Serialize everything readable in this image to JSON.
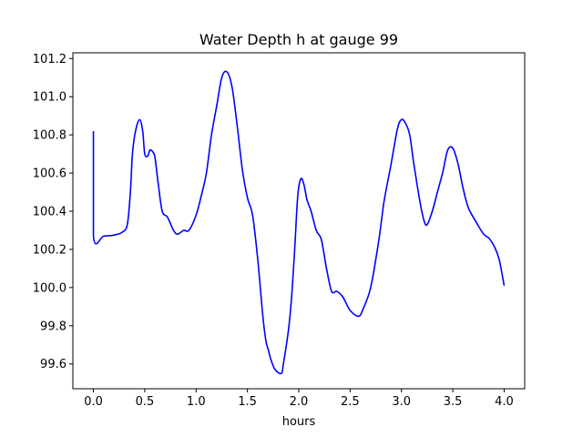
{
  "chart_data": {
    "type": "line",
    "title": "Water Depth h at gauge 99",
    "xlabel": "hours",
    "ylabel": "",
    "xlim": [
      -0.2,
      4.2
    ],
    "ylim": [
      99.47,
      101.23
    ],
    "xticks": [
      0.0,
      0.5,
      1.0,
      1.5,
      2.0,
      2.5,
      3.0,
      3.5,
      4.0
    ],
    "xtick_labels": [
      "0.0",
      "0.5",
      "1.0",
      "1.5",
      "2.0",
      "2.5",
      "3.0",
      "3.5",
      "4.0"
    ],
    "yticks": [
      99.6,
      99.8,
      100.0,
      100.2,
      100.4,
      100.6,
      100.8,
      101.0,
      101.2
    ],
    "ytick_labels": [
      "99.6",
      "99.8",
      "100.0",
      "100.2",
      "100.4",
      "100.6",
      "100.8",
      "101.0",
      "101.2"
    ],
    "grid": false,
    "series": [
      {
        "color": "#0000ff",
        "x": [
          0.0,
          0.0,
          0.1,
          0.2,
          0.28,
          0.33,
          0.36,
          0.38,
          0.41,
          0.45,
          0.48,
          0.5,
          0.53,
          0.55,
          0.58,
          0.6,
          0.63,
          0.67,
          0.72,
          0.78,
          0.82,
          0.88,
          0.93,
          1.0,
          1.05,
          1.1,
          1.15,
          1.2,
          1.25,
          1.3,
          1.35,
          1.4,
          1.45,
          1.5,
          1.55,
          1.6,
          1.65,
          1.68,
          1.7,
          1.73,
          1.77,
          1.83,
          1.85,
          1.9,
          1.93,
          1.96,
          1.99,
          2.02,
          2.05,
          2.08,
          2.12,
          2.17,
          2.22,
          2.27,
          2.32,
          2.37,
          2.43,
          2.5,
          2.58,
          2.62,
          2.7,
          2.78,
          2.83,
          2.9,
          2.96,
          3.0,
          3.04,
          3.08,
          3.12,
          3.18,
          3.22,
          3.25,
          3.3,
          3.35,
          3.4,
          3.45,
          3.5,
          3.55,
          3.6,
          3.65,
          3.72,
          3.8,
          3.85,
          3.9,
          3.95,
          4.0
        ],
        "y": [
          100.82,
          100.27,
          100.27,
          100.275,
          100.29,
          100.33,
          100.5,
          100.7,
          100.82,
          100.88,
          100.82,
          100.7,
          100.69,
          100.72,
          100.71,
          100.68,
          100.55,
          100.4,
          100.37,
          100.3,
          100.28,
          100.3,
          100.3,
          100.38,
          100.48,
          100.6,
          100.8,
          100.95,
          101.1,
          101.13,
          101.05,
          100.85,
          100.62,
          100.47,
          100.38,
          100.15,
          99.85,
          99.72,
          99.68,
          99.62,
          99.57,
          99.55,
          99.6,
          99.78,
          99.95,
          100.2,
          100.48,
          100.57,
          100.54,
          100.46,
          100.4,
          100.3,
          100.25,
          100.1,
          99.98,
          99.98,
          99.95,
          99.88,
          99.85,
          99.88,
          100.0,
          100.25,
          100.45,
          100.65,
          100.83,
          100.88,
          100.86,
          100.8,
          100.65,
          100.45,
          100.35,
          100.33,
          100.4,
          100.5,
          100.6,
          100.72,
          100.73,
          100.65,
          100.52,
          100.42,
          100.35,
          100.28,
          100.26,
          100.22,
          100.15,
          100.01
        ]
      }
    ]
  }
}
